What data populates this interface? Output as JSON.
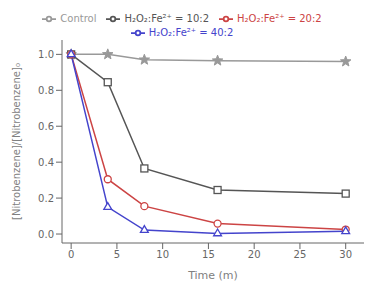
{
  "chart_data": {
    "type": "line",
    "x": [
      0,
      4,
      8,
      16,
      30
    ],
    "series": [
      {
        "name": "Control",
        "color": "#999999",
        "marker": "star",
        "values": [
          1.0,
          1.0,
          0.97,
          0.965,
          0.96
        ]
      },
      {
        "name": "H₂O₂:Fe²⁺ = 10:2",
        "color": "#555555",
        "marker": "square",
        "values": [
          1.0,
          0.845,
          0.365,
          0.245,
          0.225
        ]
      },
      {
        "name": "H₂O₂:Fe²⁺ = 20:2",
        "color": "#cc4444",
        "marker": "circle",
        "values": [
          1.0,
          0.305,
          0.155,
          0.058,
          0.025
        ]
      },
      {
        "name": "H₂O₂:Fe²⁺ = 40:2",
        "color": "#4444cc",
        "marker": "triangle",
        "values": [
          1.0,
          0.15,
          0.022,
          0.003,
          0.015
        ]
      }
    ],
    "xlabel": "Time (m)",
    "ylabel": "[Nitrobenzene]/[Nitrobenzene]₀",
    "xlim": [
      -1,
      32
    ],
    "ylim": [
      -0.05,
      1.08
    ],
    "xticks": [
      0,
      5,
      10,
      15,
      20,
      25,
      30
    ],
    "yticks": [
      {
        "value": 0,
        "label": "0.0"
      },
      0.2,
      0.4,
      0.6,
      0.8,
      {
        "value": 1,
        "label": "1.0"
      }
    ],
    "grid": false,
    "legend": "top"
  }
}
